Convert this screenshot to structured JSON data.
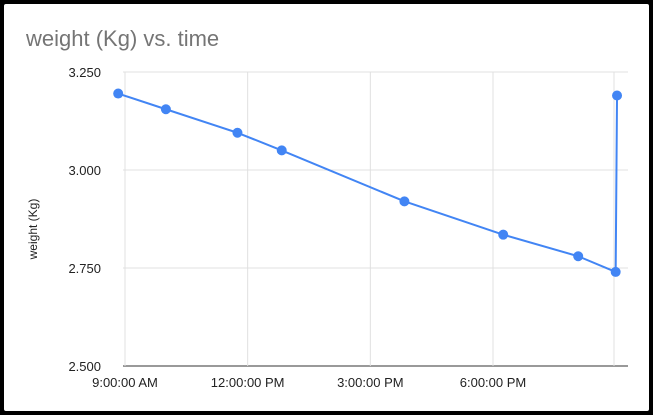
{
  "chart_data": {
    "type": "line",
    "title": "weight (Kg) vs. time",
    "xlabel": "",
    "ylabel": "weight (Kg)",
    "ylim": [
      2.5,
      3.25
    ],
    "y_ticks": [
      "3.250",
      "3.000",
      "2.750",
      "2.500"
    ],
    "x_ticks": [
      "9:00:00 AM",
      "12:00:00 PM",
      "3:00:00 PM",
      "6:00:00 PM"
    ],
    "grid": true,
    "legend": "none",
    "color": "#4285f4",
    "series": [
      {
        "x": [
          "8:50:00 AM",
          "10:00:00 AM",
          "11:45:00 AM",
          "12:50:00 PM",
          "3:50:00 PM",
          "6:15:00 PM",
          "8:05:00 PM",
          "9:00:00 PM",
          "9:02:00 PM"
        ],
        "values": [
          3.195,
          3.155,
          3.095,
          3.05,
          2.92,
          2.835,
          2.78,
          2.74,
          3.19
        ]
      }
    ]
  }
}
